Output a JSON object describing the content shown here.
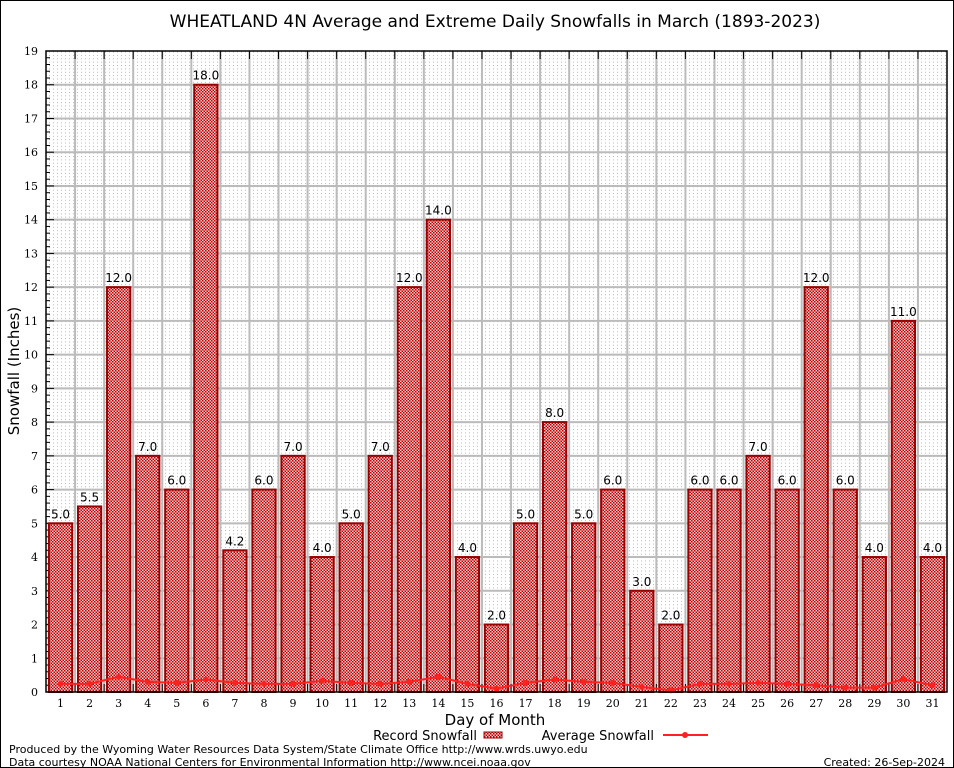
{
  "chart_data": {
    "type": "bar",
    "title": "WHEATLAND 4N Average and Extreme Daily Snowfalls in March (1893-2023)",
    "xlabel": "Day of Month",
    "ylabel": "Snowfall (Inches)",
    "ylim": [
      0,
      19
    ],
    "grid": true,
    "legend_placement": "bottom",
    "categories": [
      "1",
      "2",
      "3",
      "4",
      "5",
      "6",
      "7",
      "8",
      "9",
      "10",
      "11",
      "12",
      "13",
      "14",
      "15",
      "16",
      "17",
      "18",
      "19",
      "20",
      "21",
      "22",
      "23",
      "24",
      "25",
      "26",
      "27",
      "28",
      "29",
      "30",
      "31"
    ],
    "yticks": [
      "0",
      "1",
      "2",
      "3",
      "4",
      "5",
      "6",
      "7",
      "8",
      "9",
      "10",
      "11",
      "12",
      "13",
      "14",
      "15",
      "16",
      "17",
      "18",
      "19"
    ],
    "series": [
      {
        "name": "Record Snowfall",
        "type": "bar",
        "color": "#cc0000",
        "values": [
          5.0,
          5.5,
          12.0,
          7.0,
          6.0,
          18.0,
          4.2,
          6.0,
          7.0,
          4.0,
          5.0,
          7.0,
          12.0,
          14.0,
          4.0,
          2.0,
          5.0,
          8.0,
          5.0,
          6.0,
          3.0,
          2.0,
          6.0,
          6.0,
          7.0,
          6.0,
          12.0,
          6.0,
          4.0,
          11.0,
          4.0
        ],
        "labels": [
          "5.0",
          "5.5",
          "12.0",
          "7.0",
          "6.0",
          "18.0",
          "4.2",
          "6.0",
          "7.0",
          "4.0",
          "5.0",
          "7.0",
          "12.0",
          "14.0",
          "4.0",
          "2.0",
          "5.0",
          "8.0",
          "5.0",
          "6.0",
          "3.0",
          "2.0",
          "6.0",
          "6.0",
          "7.0",
          "6.0",
          "12.0",
          "6.0",
          "4.0",
          "11.0",
          "4.0"
        ]
      },
      {
        "name": "Average Snowfall",
        "type": "line",
        "color": "#ff2020",
        "values": [
          0.24,
          0.24,
          0.45,
          0.3,
          0.27,
          0.37,
          0.27,
          0.24,
          0.24,
          0.33,
          0.27,
          0.24,
          0.3,
          0.45,
          0.24,
          0.1,
          0.27,
          0.37,
          0.3,
          0.27,
          0.15,
          0.05,
          0.24,
          0.24,
          0.27,
          0.24,
          0.2,
          0.13,
          0.13,
          0.38,
          0.2
        ]
      }
    ]
  },
  "footer": {
    "line1": "Produced by the Wyoming Water Resources Data System/State Climate Office http://www.wrds.uwyo.edu",
    "line2": "Data courtesy NOAA National Centers for Environmental Information http://www.ncei.noaa.gov",
    "created": "Created: 26-Sep-2024"
  }
}
